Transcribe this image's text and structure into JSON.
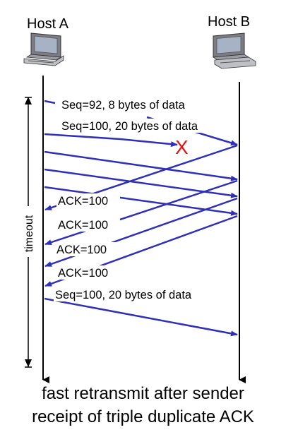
{
  "hosts": {
    "a": {
      "label": "Host A"
    },
    "b": {
      "label": "Host B"
    }
  },
  "timeout": {
    "label": "timeout"
  },
  "messages": [
    {
      "label": "Seq=92, 8 bytes of data"
    },
    {
      "label": "Seq=100, 20 bytes of data"
    },
    {
      "label": "ACK=100"
    },
    {
      "label": "ACK=100"
    },
    {
      "label": "ACK=100"
    },
    {
      "label": "ACK=100"
    },
    {
      "label": "Seq=100, 20 bytes of data"
    }
  ],
  "loss_marker": {
    "label": "X",
    "color": "#ee1111"
  },
  "colors": {
    "arrow": "#2f2fb8",
    "timeline": "#000000"
  },
  "caption": {
    "line1": "fast retransmit after sender",
    "line2": "receipt of triple duplicate ACK"
  }
}
